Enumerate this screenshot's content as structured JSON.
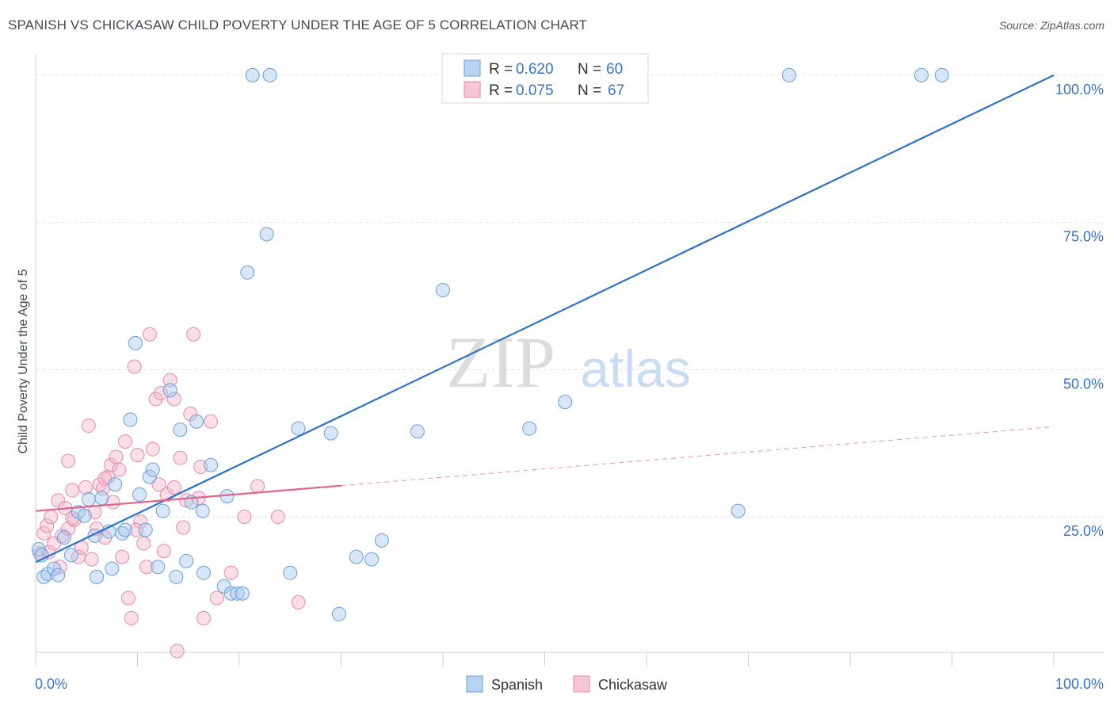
{
  "title": "SPANISH VS CHICKASAW CHILD POVERTY UNDER THE AGE OF 5 CORRELATION CHART",
  "source": "Source: ZipAtlas.com",
  "watermark": {
    "zip": "ZIP",
    "atlas": "atlas"
  },
  "legend_top": [
    {
      "r_label": "R =",
      "r_value": "0.620",
      "n_label": "N =",
      "n_value": "60",
      "color": "#a8c8f0",
      "stroke": "#6a9fd8"
    },
    {
      "r_label": "R =",
      "r_value": "0.075",
      "n_label": "N =",
      "n_value": "67",
      "color": "#f5b8cb",
      "stroke": "#e68aa8"
    }
  ],
  "legend_bottom": [
    {
      "label": "Spanish",
      "color": "#a8c8f0",
      "stroke": "#6a9fd8"
    },
    {
      "label": "Chickasaw",
      "color": "#f5b8cb",
      "stroke": "#e68aa8"
    }
  ],
  "chart_data": {
    "type": "scatter",
    "title": "SPANISH VS CHICKASAW CHILD POVERTY UNDER THE AGE OF 5 CORRELATION CHART",
    "xlabel": "",
    "ylabel": "Child Poverty Under the Age of 5",
    "xlim": [
      0,
      100
    ],
    "ylim": [
      2,
      102
    ],
    "x_tick_labels": [
      {
        "value": 0,
        "label": "0.0%"
      },
      {
        "value": 100,
        "label": "100.0%"
      }
    ],
    "y_tick_labels": [
      {
        "value": 25,
        "label": "25.0%"
      },
      {
        "value": 50,
        "label": "50.0%"
      },
      {
        "value": 75,
        "label": "75.0%"
      },
      {
        "value": 100,
        "label": "100.0%"
      }
    ],
    "gridlines_y": [
      25,
      50,
      75,
      100
    ],
    "series": [
      {
        "name": "Spanish",
        "color": "#a8c8f0",
        "stroke": "#6a9fd8",
        "trend": {
          "x0": 0,
          "y0": 17.3,
          "x1": 100,
          "y1": 100,
          "color": "#2d72c7"
        },
        "points": [
          [
            0.3,
            19.5
          ],
          [
            0.6,
            18.5
          ],
          [
            0.8,
            14.8
          ],
          [
            1.2,
            15.3
          ],
          [
            1.8,
            16.2
          ],
          [
            2.2,
            15.1
          ],
          [
            2.8,
            21.5
          ],
          [
            3.5,
            18.5
          ],
          [
            4.2,
            25.8
          ],
          [
            4.8,
            25.2
          ],
          [
            5.2,
            28
          ],
          [
            5.8,
            21.8
          ],
          [
            6,
            14.8
          ],
          [
            6.5,
            28.2
          ],
          [
            7.2,
            22.5
          ],
          [
            7.5,
            16.2
          ],
          [
            7.8,
            30.5
          ],
          [
            8.5,
            22.2
          ],
          [
            8.8,
            22.8
          ],
          [
            9.3,
            41.5
          ],
          [
            9.8,
            54.5
          ],
          [
            10.2,
            28.8
          ],
          [
            10.8,
            22.8
          ],
          [
            11.2,
            31.8
          ],
          [
            11.5,
            33
          ],
          [
            12,
            16.5
          ],
          [
            12.5,
            26
          ],
          [
            13.2,
            46.5
          ],
          [
            13.8,
            14.8
          ],
          [
            14.2,
            39.8
          ],
          [
            14.8,
            17.5
          ],
          [
            15.3,
            27.5
          ],
          [
            15.8,
            41.2
          ],
          [
            16.4,
            26
          ],
          [
            16.5,
            15.5
          ],
          [
            17.2,
            33.8
          ],
          [
            18.5,
            13.2
          ],
          [
            18.8,
            28.5
          ],
          [
            19.2,
            12
          ],
          [
            19.8,
            12
          ],
          [
            20.3,
            12
          ],
          [
            20.8,
            66.5
          ],
          [
            21.3,
            100
          ],
          [
            22.7,
            73
          ],
          [
            23,
            100
          ],
          [
            25,
            15.5
          ],
          [
            25.8,
            40
          ],
          [
            29,
            39.2
          ],
          [
            29.8,
            8.5
          ],
          [
            31.5,
            18.2
          ],
          [
            33,
            17.8
          ],
          [
            34,
            21
          ],
          [
            37.5,
            39.5
          ],
          [
            40,
            63.5
          ],
          [
            48.5,
            40
          ],
          [
            52,
            44.5
          ],
          [
            69,
            26
          ],
          [
            74,
            100
          ],
          [
            87,
            100
          ],
          [
            89,
            100
          ]
        ]
      },
      {
        "name": "Chickasaw",
        "color": "#f5b8cb",
        "stroke": "#e68aa8",
        "trend": {
          "x0": 0,
          "y0": 26,
          "x1": 30,
          "y1": 30.3,
          "x2": 100,
          "y2": 40.3,
          "color": "#e2628f"
        },
        "points": [
          [
            0.4,
            18.8
          ],
          [
            0.8,
            22.2
          ],
          [
            1.1,
            23.5
          ],
          [
            1.3,
            19
          ],
          [
            1.5,
            25
          ],
          [
            1.8,
            20.5
          ],
          [
            2.2,
            27.8
          ],
          [
            2.6,
            21.8
          ],
          [
            2.9,
            26.5
          ],
          [
            3.2,
            23
          ],
          [
            3.2,
            34.5
          ],
          [
            3.6,
            29.5
          ],
          [
            3.8,
            24.5
          ],
          [
            4.2,
            18.2
          ],
          [
            4.5,
            19.8
          ],
          [
            4.9,
            30
          ],
          [
            5.2,
            40.5
          ],
          [
            5.5,
            17.8
          ],
          [
            6,
            23
          ],
          [
            6.3,
            30.5
          ],
          [
            6.6,
            29.8
          ],
          [
            6.8,
            21.5
          ],
          [
            7.1,
            31.8
          ],
          [
            7.4,
            33.8
          ],
          [
            7.6,
            27.5
          ],
          [
            8.2,
            33
          ],
          [
            8.5,
            18.2
          ],
          [
            8.8,
            37.8
          ],
          [
            9.1,
            11.2
          ],
          [
            9.4,
            7.8
          ],
          [
            9.7,
            50.5
          ],
          [
            10,
            35.5
          ],
          [
            10.3,
            24.2
          ],
          [
            10.6,
            20.5
          ],
          [
            10.9,
            16.5
          ],
          [
            11.2,
            56
          ],
          [
            11.5,
            36.5
          ],
          [
            11.8,
            45
          ],
          [
            12.1,
            30.5
          ],
          [
            12.3,
            46
          ],
          [
            12.6,
            19.2
          ],
          [
            12.9,
            28.8
          ],
          [
            13.2,
            48.2
          ],
          [
            13.6,
            45
          ],
          [
            13.9,
            2.2
          ],
          [
            14.2,
            35
          ],
          [
            14.5,
            23.2
          ],
          [
            14.8,
            27.8
          ],
          [
            15.2,
            42.5
          ],
          [
            15.5,
            56
          ],
          [
            16.2,
            33.5
          ],
          [
            16.5,
            7.8
          ],
          [
            17.2,
            41.2
          ],
          [
            17.8,
            11.2
          ],
          [
            19.2,
            15.5
          ],
          [
            20.5,
            25
          ],
          [
            21.8,
            30.2
          ],
          [
            23.8,
            25
          ],
          [
            25.8,
            10.5
          ],
          [
            3.6,
            24.8
          ],
          [
            5.8,
            25.8
          ],
          [
            7.9,
            35.2
          ],
          [
            9.9,
            22.8
          ],
          [
            13.6,
            30
          ],
          [
            16,
            28.2
          ],
          [
            2.4,
            16.5
          ],
          [
            6.8,
            31.5
          ]
        ]
      }
    ]
  }
}
